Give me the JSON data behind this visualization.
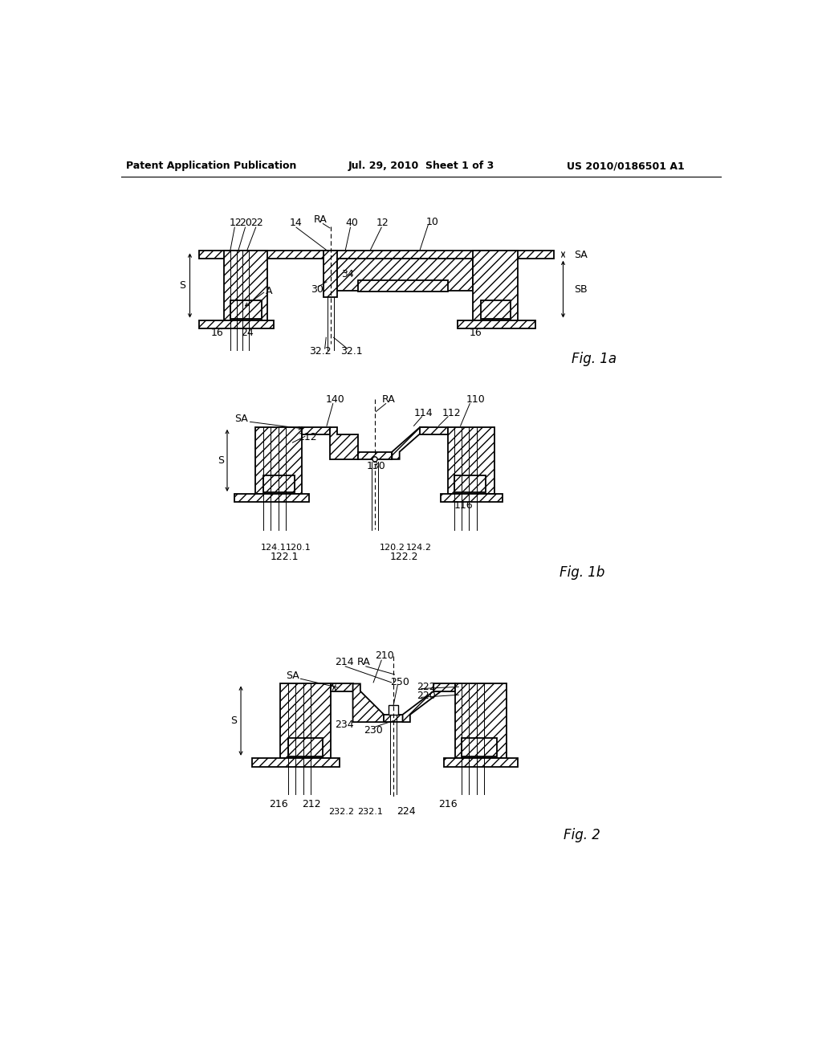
{
  "bg_color": "#ffffff",
  "header": {
    "left": "Patent Application Publication",
    "center": "Jul. 29, 2010  Sheet 1 of 3",
    "right": "US 2010/0186501 A1"
  }
}
